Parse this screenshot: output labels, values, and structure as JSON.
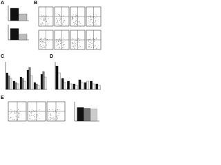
{
  "panels": [
    "A",
    "B",
    "C",
    "D",
    "E"
  ],
  "chart_data": [
    {
      "type": "bar",
      "categories": [
        null
      ],
      "ylim": [
        0,
        100
      ],
      "series": [
        {
          "color": "#111111",
          "values": [
            82
          ]
        },
        {
          "color": "#bbbbbb",
          "values": [
            45
          ]
        }
      ]
    },
    {
      "type": "bar",
      "categories": [
        null
      ],
      "ylim": [
        0,
        100
      ],
      "series": [
        {
          "color": "#111111",
          "values": [
            75
          ]
        },
        {
          "color": "#bbbbbb",
          "values": [
            38
          ]
        }
      ]
    },
    {
      "type": "bar",
      "categories": [
        null,
        null,
        null,
        null,
        null,
        null
      ],
      "ylim": [
        0,
        100
      ],
      "series": [
        {
          "color": "#111111",
          "values": [
            60,
            30,
            45,
            70,
            25,
            55
          ]
        },
        {
          "color": "#777777",
          "values": [
            50,
            25,
            40,
            80,
            20,
            65
          ]
        },
        {
          "color": "#eeeeee",
          "values": [
            40,
            20,
            30,
            50,
            15,
            45
          ]
        }
      ]
    },
    {
      "type": "bar",
      "categories": [
        null,
        null,
        null,
        null,
        null,
        null,
        null,
        null
      ],
      "ylim": [
        0,
        100
      ],
      "series": [
        {
          "color": "#111111",
          "values": [
            85,
            40,
            30,
            20,
            35,
            25,
            30,
            20
          ]
        },
        {
          "color": "#eeeeee",
          "values": [
            60,
            25,
            20,
            15,
            25,
            30,
            20,
            15
          ]
        }
      ]
    },
    {
      "type": "bar",
      "categories": [
        null
      ],
      "ylim": [
        0,
        100
      ],
      "series": [
        {
          "color": "#111111",
          "values": [
            70
          ]
        },
        {
          "color": "#777777",
          "values": [
            66
          ]
        },
        {
          "color": "#cccccc",
          "values": [
            62
          ]
        }
      ]
    }
  ]
}
